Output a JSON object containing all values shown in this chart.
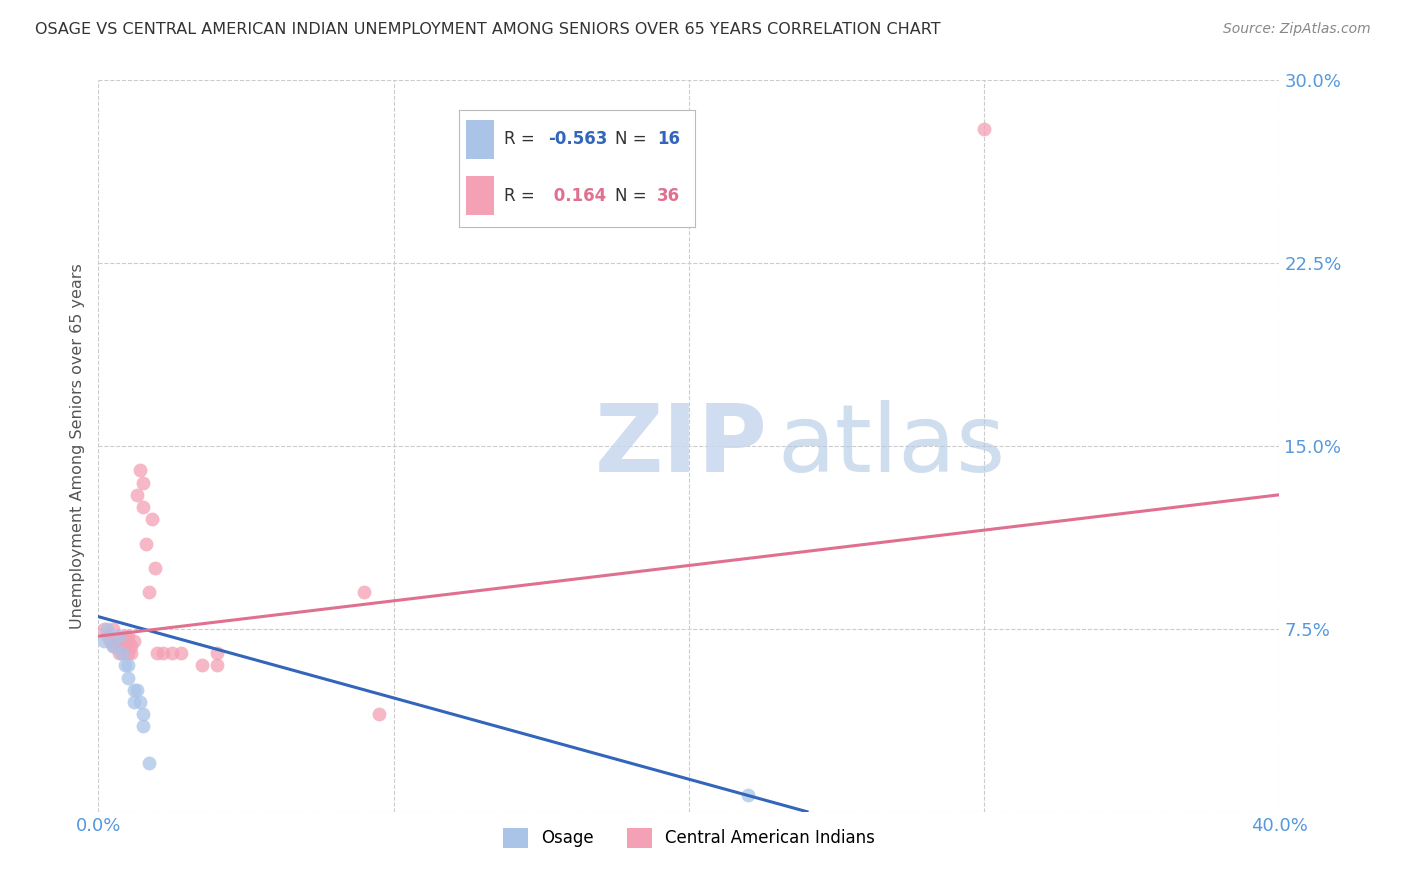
{
  "title": "OSAGE VS CENTRAL AMERICAN INDIAN UNEMPLOYMENT AMONG SENIORS OVER 65 YEARS CORRELATION CHART",
  "source": "Source: ZipAtlas.com",
  "ylabel": "Unemployment Among Seniors over 65 years",
  "xlim": [
    0.0,
    0.4
  ],
  "ylim": [
    0.0,
    0.3
  ],
  "xticks": [
    0.0,
    0.1,
    0.2,
    0.3,
    0.4
  ],
  "xtick_labels": [
    "0.0%",
    "",
    "",
    "",
    "40.0%"
  ],
  "yticks": [
    0.0,
    0.075,
    0.15,
    0.225,
    0.3
  ],
  "ytick_labels": [
    "",
    "7.5%",
    "15.0%",
    "22.5%",
    "30.0%"
  ],
  "grid_color": "#cccccc",
  "background_color": "#ffffff",
  "title_color": "#333333",
  "axis_color": "#5599dd",
  "blue_color": "#aac4e8",
  "pink_color": "#f4a0b5",
  "line_blue": "#3366bb",
  "line_pink": "#e07090",
  "osage_x": [
    0.002,
    0.003,
    0.005,
    0.007,
    0.008,
    0.009,
    0.01,
    0.01,
    0.012,
    0.012,
    0.013,
    0.014,
    0.015,
    0.015,
    0.017,
    0.22
  ],
  "osage_y": [
    0.07,
    0.075,
    0.068,
    0.072,
    0.065,
    0.06,
    0.06,
    0.055,
    0.05,
    0.045,
    0.05,
    0.045,
    0.04,
    0.035,
    0.02,
    0.007
  ],
  "ca_x": [
    0.002,
    0.003,
    0.004,
    0.005,
    0.005,
    0.006,
    0.007,
    0.007,
    0.008,
    0.008,
    0.009,
    0.009,
    0.01,
    0.01,
    0.01,
    0.011,
    0.011,
    0.012,
    0.013,
    0.014,
    0.015,
    0.015,
    0.016,
    0.017,
    0.018,
    0.019,
    0.02,
    0.022,
    0.025,
    0.028,
    0.035,
    0.04,
    0.09,
    0.095,
    0.3,
    0.04
  ],
  "ca_y": [
    0.075,
    0.072,
    0.07,
    0.068,
    0.075,
    0.068,
    0.065,
    0.07,
    0.065,
    0.07,
    0.068,
    0.072,
    0.07,
    0.065,
    0.072,
    0.068,
    0.065,
    0.07,
    0.13,
    0.14,
    0.135,
    0.125,
    0.11,
    0.09,
    0.12,
    0.1,
    0.065,
    0.065,
    0.065,
    0.065,
    0.06,
    0.06,
    0.09,
    0.04,
    0.28,
    0.065
  ],
  "blue_line_x": [
    0.0,
    0.24
  ],
  "blue_line_y": [
    0.08,
    0.0
  ],
  "pink_line_x": [
    0.0,
    0.4
  ],
  "pink_line_y": [
    0.072,
    0.13
  ]
}
